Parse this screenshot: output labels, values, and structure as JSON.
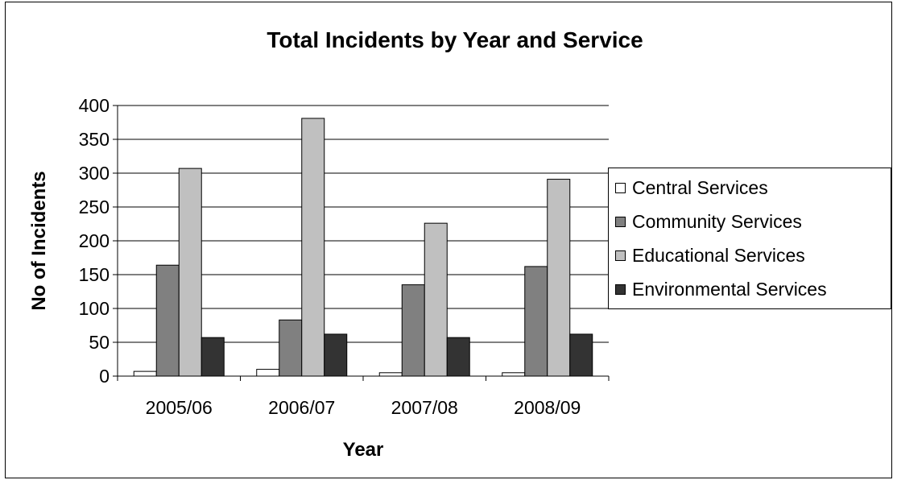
{
  "chart_data": {
    "type": "bar",
    "title": "Total Incidents by Year and Service",
    "xlabel": "Year",
    "ylabel": "No of Incidents",
    "categories": [
      "2005/06",
      "2006/07",
      "2007/08",
      "2008/09"
    ],
    "series": [
      {
        "name": "Central Services",
        "color": "#ffffff",
        "values": [
          7,
          10,
          5,
          5
        ]
      },
      {
        "name": "Community Services",
        "color": "#808080",
        "values": [
          164,
          83,
          135,
          162
        ]
      },
      {
        "name": "Educational Services",
        "color": "#c0c0c0",
        "values": [
          307,
          381,
          226,
          291
        ]
      },
      {
        "name": "Environmental Services",
        "color": "#333333",
        "values": [
          57,
          62,
          57,
          62
        ]
      }
    ],
    "ylim": [
      0,
      400
    ],
    "yticks": [
      "0",
      "50",
      "100",
      "150",
      "200",
      "250",
      "300",
      "350",
      "400"
    ],
    "grid": true,
    "legend_position": "right"
  }
}
